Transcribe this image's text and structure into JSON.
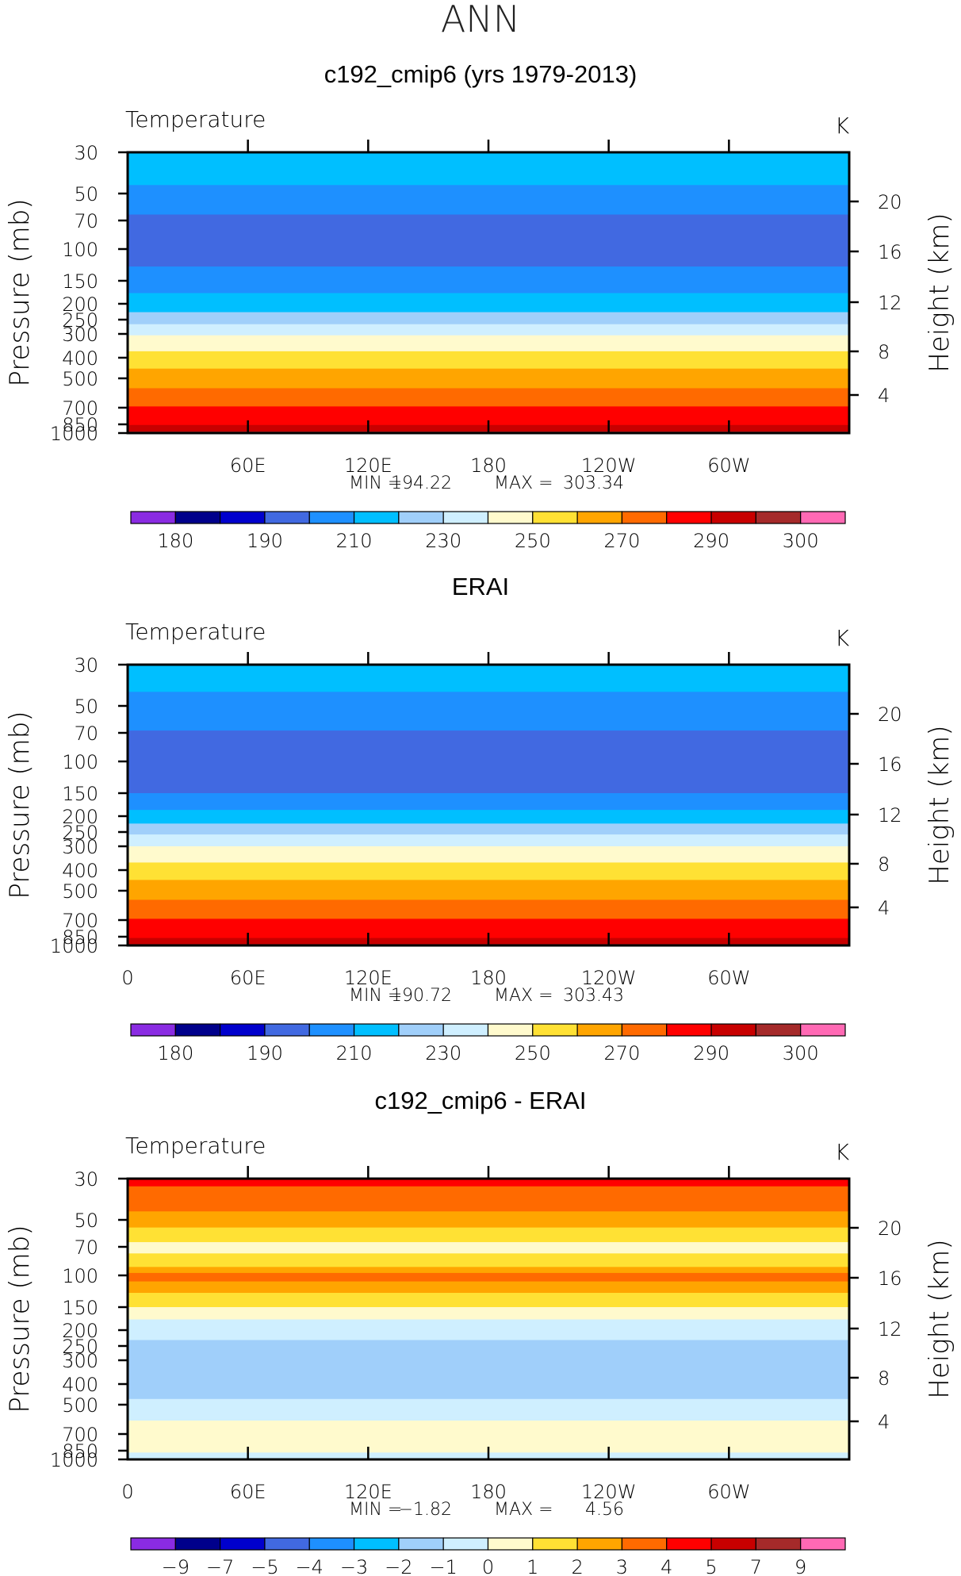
{
  "figure_title": "ANN",
  "chart_data": [
    {
      "type": "heatmap",
      "title": "c192_cmip6 (yrs 1979-2013)",
      "variable": "Temperature",
      "units": "K",
      "ylabel": "Pressure (mb)",
      "ylabel_right": "Height (km)",
      "y_ticks": [
        "30",
        "50",
        "70",
        "100",
        "150",
        "200",
        "250",
        "300",
        "400",
        "500",
        "700",
        "850",
        "1000"
      ],
      "y_right_ticks": [
        "20",
        "16",
        "12",
        "8",
        "4"
      ],
      "x_ticks": [
        "",
        "60E",
        "120E",
        "180",
        "120W",
        "60W"
      ],
      "min_label": "MIN",
      "max_label": "MAX",
      "min_value": "194.22",
      "max_value": "303.34",
      "colorbar_labels": [
        "180",
        "190",
        "210",
        "230",
        "250",
        "270",
        "290",
        "300"
      ],
      "bands": [
        {
          "p_top": 30,
          "p_bottom": 45,
          "color": "#00BFFF"
        },
        {
          "p_top": 45,
          "p_bottom": 65,
          "color": "#1E90FF"
        },
        {
          "p_top": 65,
          "p_bottom": 125,
          "color": "#4169E1"
        },
        {
          "p_top": 125,
          "p_bottom": 175,
          "color": "#1E90FF"
        },
        {
          "p_top": 175,
          "p_bottom": 225,
          "color": "#00BFFF"
        },
        {
          "p_top": 225,
          "p_bottom": 265,
          "color": "#A0CFFA"
        },
        {
          "p_top": 265,
          "p_bottom": 305,
          "color": "#CFEFFF"
        },
        {
          "p_top": 305,
          "p_bottom": 370,
          "color": "#FFFACD"
        },
        {
          "p_top": 370,
          "p_bottom": 450,
          "color": "#FFE134"
        },
        {
          "p_top": 450,
          "p_bottom": 560,
          "color": "#FFA500"
        },
        {
          "p_top": 560,
          "p_bottom": 690,
          "color": "#FF6A00"
        },
        {
          "p_top": 690,
          "p_bottom": 860,
          "color": "#FF0000"
        },
        {
          "p_top": 860,
          "p_bottom": 970,
          "color": "#C80000"
        },
        {
          "p_top": 970,
          "p_bottom": 1000,
          "color": "#A52A2A"
        }
      ]
    },
    {
      "type": "heatmap",
      "title": "ERAI",
      "variable": "Temperature",
      "units": "K",
      "ylabel": "Pressure (mb)",
      "ylabel_right": "Height (km)",
      "y_ticks": [
        "30",
        "50",
        "70",
        "100",
        "150",
        "200",
        "250",
        "300",
        "400",
        "500",
        "700",
        "850",
        "1000"
      ],
      "y_right_ticks": [
        "20",
        "16",
        "12",
        "8",
        "4"
      ],
      "x_ticks": [
        "0",
        "60E",
        "120E",
        "180",
        "120W",
        "60W"
      ],
      "min_label": "MIN",
      "max_label": "MAX",
      "min_value": "190.72",
      "max_value": "303.43",
      "colorbar_labels": [
        "180",
        "190",
        "210",
        "230",
        "250",
        "270",
        "290",
        "300"
      ],
      "bands": [
        {
          "p_top": 30,
          "p_bottom": 42,
          "color": "#00BFFF"
        },
        {
          "p_top": 42,
          "p_bottom": 68,
          "color": "#1E90FF"
        },
        {
          "p_top": 68,
          "p_bottom": 150,
          "color": "#4169E1"
        },
        {
          "p_top": 150,
          "p_bottom": 185,
          "color": "#1E90FF"
        },
        {
          "p_top": 185,
          "p_bottom": 222,
          "color": "#00BFFF"
        },
        {
          "p_top": 222,
          "p_bottom": 258,
          "color": "#A0CFFA"
        },
        {
          "p_top": 258,
          "p_bottom": 300,
          "color": "#CFEFFF"
        },
        {
          "p_top": 300,
          "p_bottom": 365,
          "color": "#FFFACD"
        },
        {
          "p_top": 365,
          "p_bottom": 445,
          "color": "#FFE134"
        },
        {
          "p_top": 445,
          "p_bottom": 555,
          "color": "#FFA500"
        },
        {
          "p_top": 555,
          "p_bottom": 690,
          "color": "#FF6A00"
        },
        {
          "p_top": 690,
          "p_bottom": 870,
          "color": "#FF0000"
        },
        {
          "p_top": 870,
          "p_bottom": 975,
          "color": "#C80000"
        },
        {
          "p_top": 975,
          "p_bottom": 1000,
          "color": "#A52A2A"
        }
      ]
    },
    {
      "type": "heatmap",
      "title": "c192_cmip6 - ERAI",
      "variable": "Temperature",
      "units": "K",
      "ylabel": "Pressure (mb)",
      "ylabel_right": "Height (km)",
      "y_ticks": [
        "30",
        "50",
        "70",
        "100",
        "150",
        "200",
        "250",
        "300",
        "400",
        "500",
        "700",
        "850",
        "1000"
      ],
      "y_right_ticks": [
        "20",
        "16",
        "12",
        "8",
        "4"
      ],
      "x_ticks": [
        "0",
        "60E",
        "120E",
        "180",
        "120W",
        "60W"
      ],
      "min_label": "MIN",
      "max_label": "MAX",
      "min_value": "−1.82",
      "max_value": "4.56",
      "colorbar_labels": [
        "−9",
        "−7",
        "−5",
        "−4",
        "−3",
        "−2",
        "−1",
        "0",
        "1",
        "2",
        "3",
        "4",
        "5",
        "7",
        "9"
      ],
      "bands": [
        {
          "p_top": 30,
          "p_bottom": 33,
          "color": "#FF0000"
        },
        {
          "p_top": 33,
          "p_bottom": 45,
          "color": "#FF6A00"
        },
        {
          "p_top": 45,
          "p_bottom": 55,
          "color": "#FFA500"
        },
        {
          "p_top": 55,
          "p_bottom": 66,
          "color": "#FFE134"
        },
        {
          "p_top": 66,
          "p_bottom": 76,
          "color": "#FFFACD"
        },
        {
          "p_top": 76,
          "p_bottom": 90,
          "color": "#FFE134"
        },
        {
          "p_top": 90,
          "p_bottom": 97,
          "color": "#FFA500"
        },
        {
          "p_top": 97,
          "p_bottom": 108,
          "color": "#FF6A00"
        },
        {
          "p_top": 108,
          "p_bottom": 125,
          "color": "#FFA500"
        },
        {
          "p_top": 125,
          "p_bottom": 150,
          "color": "#FFE134"
        },
        {
          "p_top": 150,
          "p_bottom": 175,
          "color": "#FFFACD"
        },
        {
          "p_top": 175,
          "p_bottom": 230,
          "color": "#CFEFFF"
        },
        {
          "p_top": 230,
          "p_bottom": 470,
          "color": "#A0CFFA"
        },
        {
          "p_top": 470,
          "p_bottom": 600,
          "color": "#CFEFFF"
        },
        {
          "p_top": 600,
          "p_bottom": 880,
          "color": "#FFFACD"
        },
        {
          "p_top": 880,
          "p_bottom": 1000,
          "color": "#CFEFFF"
        }
      ]
    }
  ],
  "colorbars": {
    "temperature": [
      "#8A2BE2",
      "#00008B",
      "#0000CD",
      "#4169E1",
      "#1E90FF",
      "#00BFFF",
      "#A0CFFA",
      "#CFEFFF",
      "#FFFACD",
      "#FFE134",
      "#FFA500",
      "#FF6A00",
      "#FF0000",
      "#C80000",
      "#A52A2A",
      "#FF69B4"
    ],
    "difference": [
      "#8A2BE2",
      "#00008B",
      "#0000CD",
      "#4169E1",
      "#1E90FF",
      "#00BFFF",
      "#A0CFFA",
      "#CFEFFF",
      "#FFFACD",
      "#FFE134",
      "#FFA500",
      "#FF6A00",
      "#FF0000",
      "#C80000",
      "#A52A2A",
      "#FF69B4"
    ]
  }
}
